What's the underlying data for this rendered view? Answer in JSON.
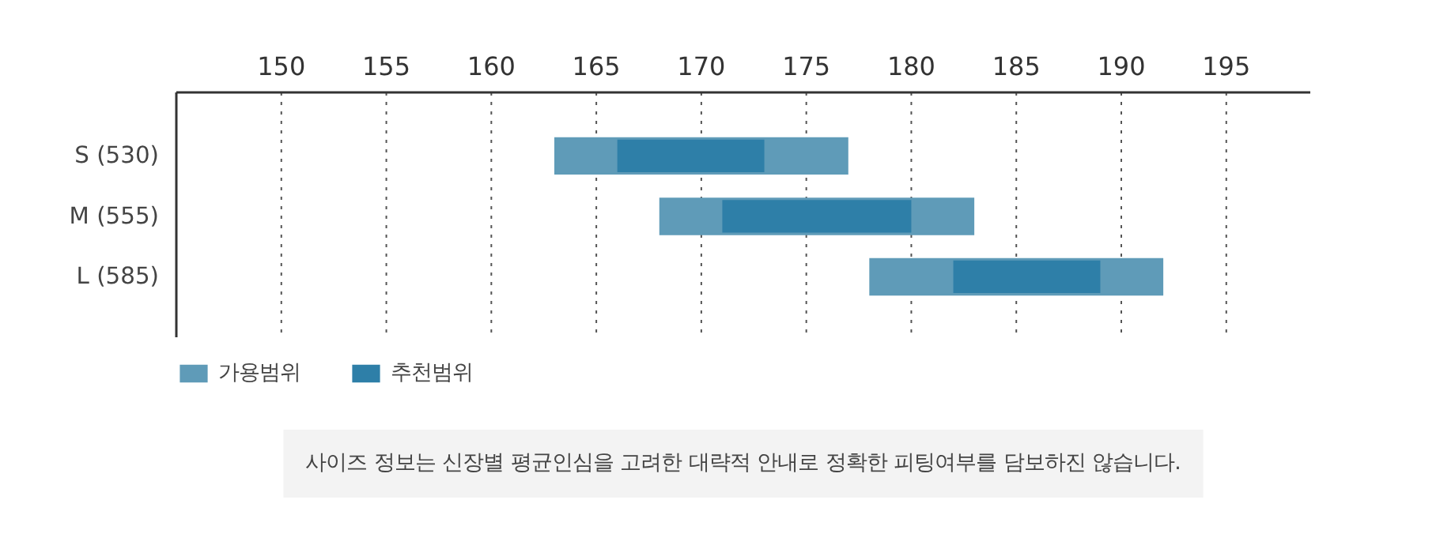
{
  "chart_data": {
    "type": "bar",
    "orientation": "horizontal",
    "categories": [
      "S (530)",
      "M (555)",
      "L (585)"
    ],
    "series": [
      {
        "name": "가용범위",
        "color": "#5f9bb8",
        "base": [
          163,
          168,
          178
        ],
        "values": [
          14,
          15,
          14
        ]
      },
      {
        "name": "추천범위",
        "color": "#2e7fa8",
        "base": [
          166,
          171,
          182
        ],
        "values": [
          7,
          9,
          7
        ]
      }
    ],
    "xlim": [
      145,
      199
    ],
    "xticks": [
      150,
      155,
      160,
      165,
      170,
      175,
      180,
      185,
      190,
      195
    ],
    "grid": "x",
    "legend": "bottom left",
    "annotations": [
      "사이즈 정보는 신장별 평균인심을 고려한 대략적 안내로 정확한 피팅여부를 담보하진 않습니다."
    ]
  }
}
